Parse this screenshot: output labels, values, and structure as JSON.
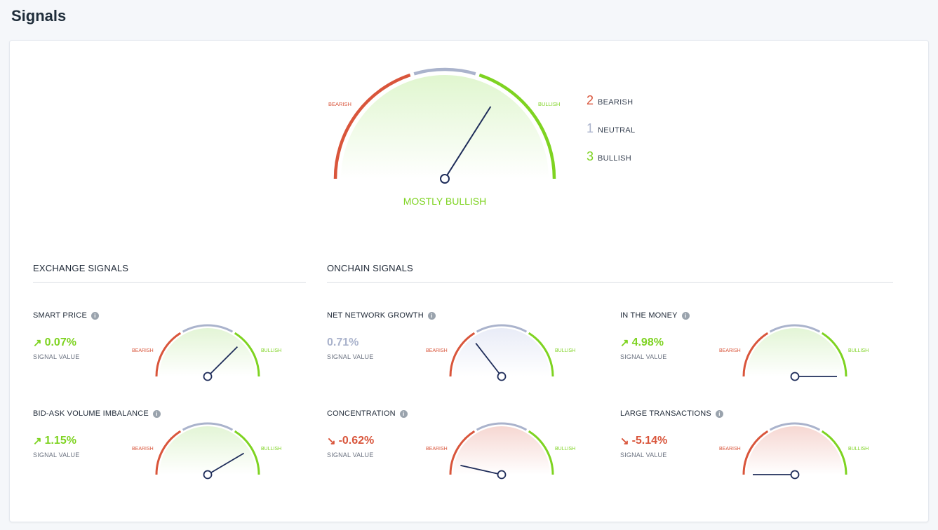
{
  "page": {
    "title": "Signals"
  },
  "colors": {
    "bearish": "#d9553b",
    "neutral": "#aab3cc",
    "bullish": "#7ed321",
    "needle": "#1f2d5a",
    "bull_fill": "#e3f5d6",
    "bear_fill": "#f6d7d2",
    "neutral_fill": "#e9ecf7"
  },
  "main": {
    "label_bearish": "BEARISH",
    "label_bullish": "BULLISH",
    "verdict": "MOSTLY BULLISH",
    "needle_score": 0.68,
    "fill": "bull",
    "summary": [
      {
        "count": "2",
        "label": "BEARISH",
        "color": "#d9553b"
      },
      {
        "count": "1",
        "label": "NEUTRAL",
        "color": "#aab3cc"
      },
      {
        "count": "3",
        "label": "BULLISH",
        "color": "#7ed321"
      }
    ]
  },
  "sections": {
    "exchange": "EXCHANGE SIGNALS",
    "onchain": "ONCHAIN SIGNALS"
  },
  "signals": [
    {
      "name": "SMART PRICE",
      "value": "0.07%",
      "direction": "up",
      "sub": "SIGNAL VALUE",
      "score": 0.75,
      "fill": "bull"
    },
    {
      "name": "BID-ASK VOLUME IMBALANCE",
      "value": "1.15%",
      "direction": "up",
      "sub": "SIGNAL VALUE",
      "score": 0.83,
      "fill": "bull"
    },
    {
      "name": "NET NETWORK GROWTH",
      "value": "0.71%",
      "direction": "none",
      "sub": "SIGNAL VALUE",
      "score": 0.29,
      "fill": "neutral"
    },
    {
      "name": "CONCENTRATION",
      "value": "-0.62%",
      "direction": "down",
      "sub": "SIGNAL VALUE",
      "score": 0.07,
      "fill": "bear"
    },
    {
      "name": "IN THE MONEY",
      "value": "4.98%",
      "direction": "up",
      "sub": "SIGNAL VALUE",
      "score": 1.0,
      "fill": "bull"
    },
    {
      "name": "LARGE TRANSACTIONS",
      "value": "-5.14%",
      "direction": "down",
      "sub": "SIGNAL VALUE",
      "score": 0.0,
      "fill": "bear"
    }
  ],
  "mini_labels": {
    "bearish": "BEARISH",
    "bullish": "BULLISH"
  },
  "icons": {
    "info": "info-icon",
    "up": "arrow-up-right-icon",
    "down": "arrow-down-right-icon"
  }
}
